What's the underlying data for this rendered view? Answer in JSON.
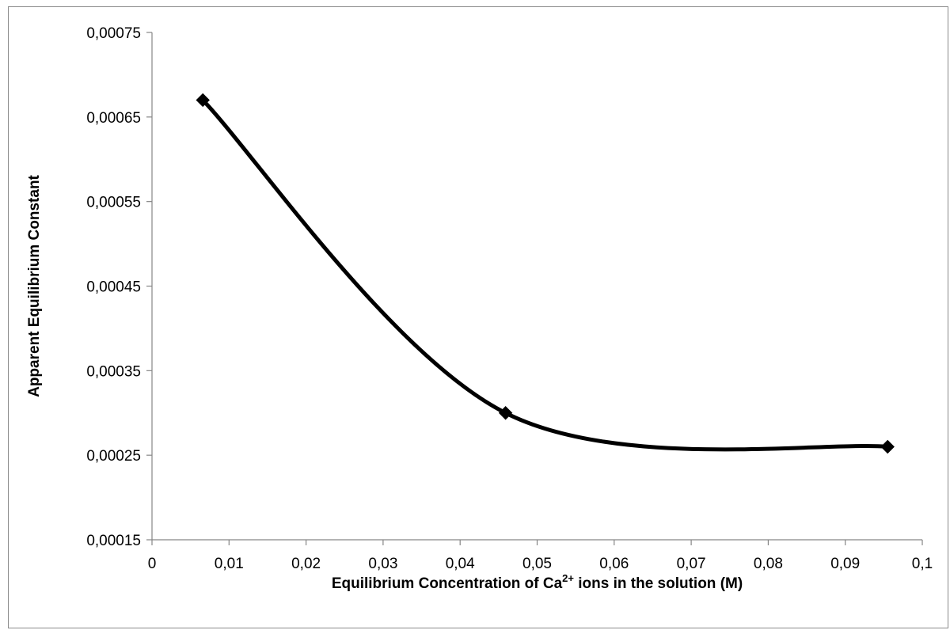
{
  "chart_data": {
    "type": "scatter",
    "title": "",
    "xlabel": {
      "prefix": "Equilibrium Concentration of Ca",
      "superscript": "2+",
      "suffix": " ions in the solution (M)"
    },
    "ylabel": "Apparent Equilibrium  Constant",
    "xlim": [
      0,
      0.1
    ],
    "ylim": [
      0.00015,
      0.00075
    ],
    "x_ticks": [
      {
        "value": 0,
        "label": "0"
      },
      {
        "value": 0.01,
        "label": "0,01"
      },
      {
        "value": 0.02,
        "label": "0,02"
      },
      {
        "value": 0.03,
        "label": "0,03"
      },
      {
        "value": 0.04,
        "label": "0,04"
      },
      {
        "value": 0.05,
        "label": "0,05"
      },
      {
        "value": 0.06,
        "label": "0,06"
      },
      {
        "value": 0.07,
        "label": "0,07"
      },
      {
        "value": 0.08,
        "label": "0,08"
      },
      {
        "value": 0.09,
        "label": "0,09"
      },
      {
        "value": 0.1,
        "label": "0,1"
      }
    ],
    "y_ticks": [
      {
        "value": 0.00015,
        "label": "0,00015"
      },
      {
        "value": 0.00025,
        "label": "0,00025"
      },
      {
        "value": 0.00035,
        "label": "0,00035"
      },
      {
        "value": 0.00045,
        "label": "0,00045"
      },
      {
        "value": 0.00055,
        "label": "0,00055"
      },
      {
        "value": 0.00065,
        "label": "0,00065"
      },
      {
        "value": 0.00075,
        "label": "0,00075"
      }
    ],
    "grid": false,
    "line": "smoothed",
    "marker": "diamond",
    "series": [
      {
        "x": [
          0.0066,
          0.0459,
          0.0955
        ],
        "y": [
          0.00067,
          0.0003,
          0.00026
        ],
        "color": "#000000"
      }
    ]
  }
}
